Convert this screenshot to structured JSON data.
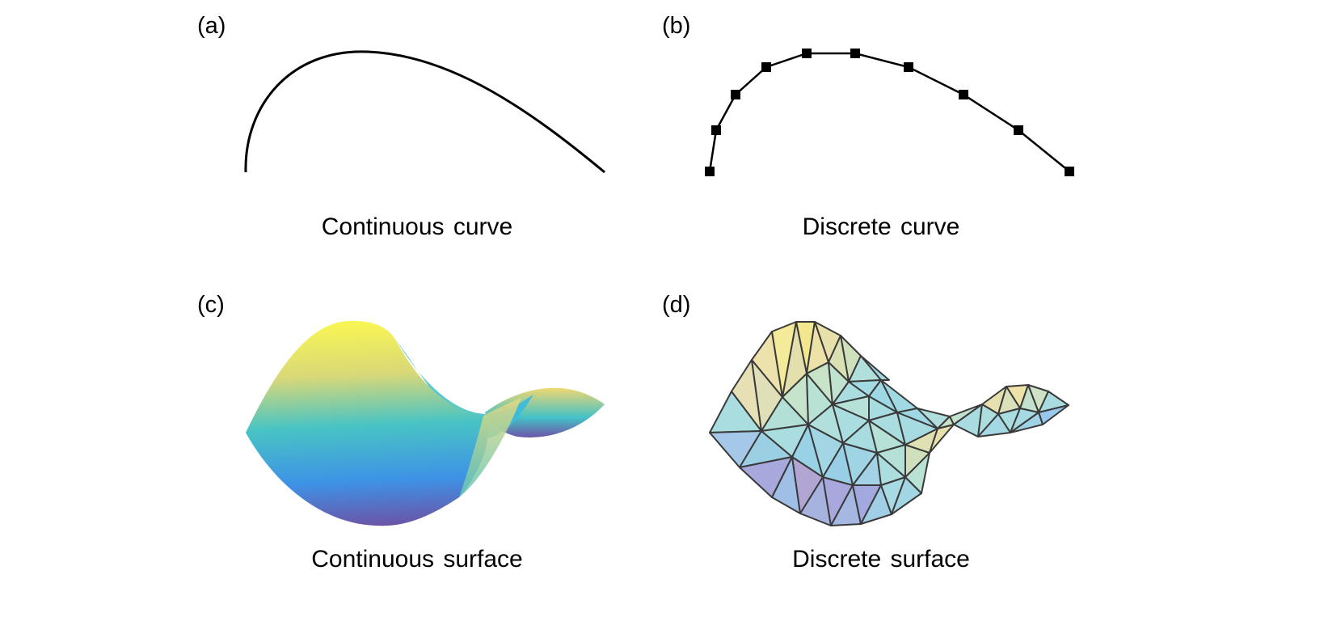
{
  "panels": [
    {
      "label": "(a)",
      "caption": "Continuous curve"
    },
    {
      "label": "(b)",
      "caption": "Discrete curve"
    },
    {
      "label": "(c)",
      "caption": "Continuous surface"
    },
    {
      "label": "(d)",
      "caption": "Discrete surface"
    }
  ],
  "colors": {
    "stroke": "#000000",
    "mesh_edge": "#3a3a3a",
    "surface_yellow": "#f4f25a",
    "surface_teal": "#3ec3c9",
    "surface_blue": "#3d8fe6",
    "surface_purple": "#6a4fa8"
  }
}
